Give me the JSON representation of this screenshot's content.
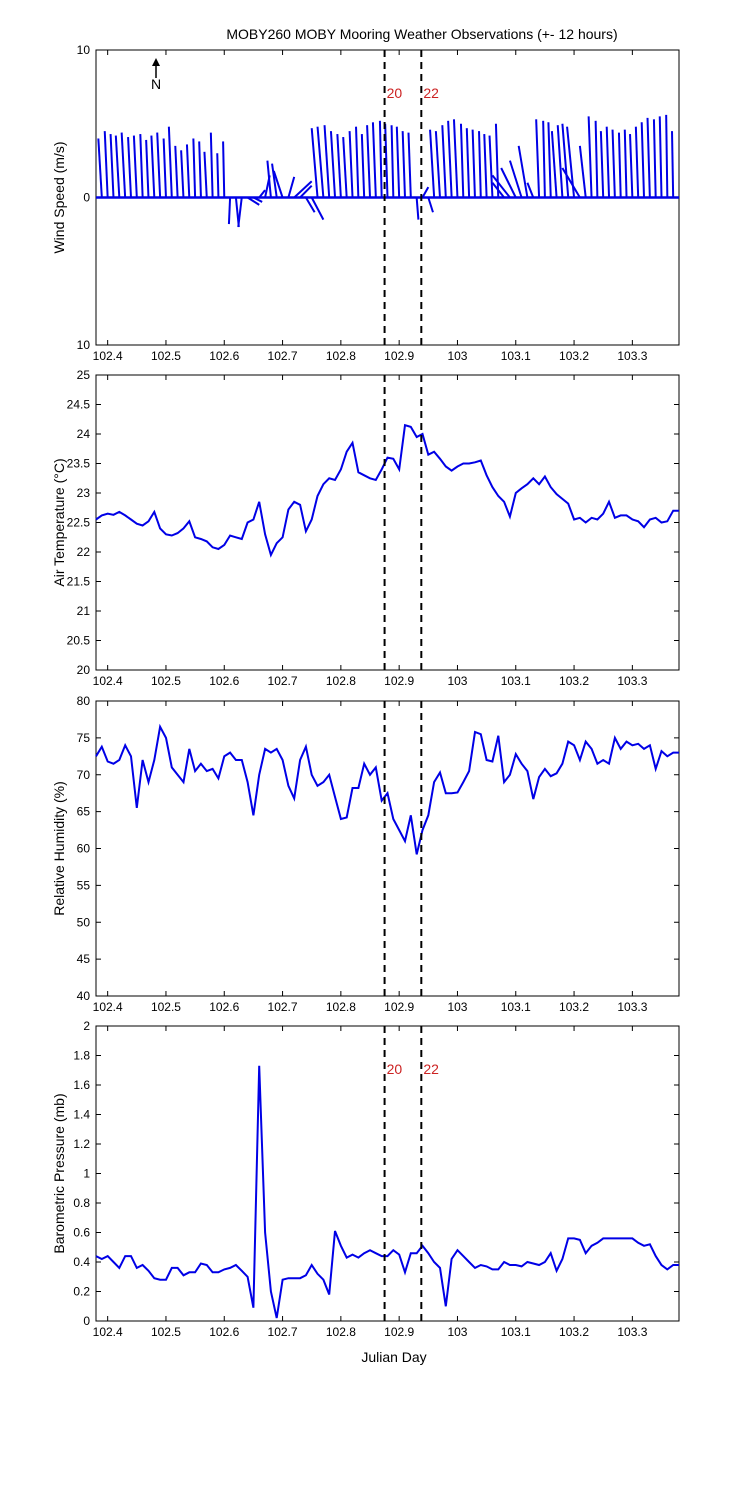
{
  "title": "MOBY260 MOBY Mooring Weather Observations (+- 12 hours)",
  "xlabel": "Julian Day",
  "north_label": "N",
  "colors": {
    "series": "#0000e6",
    "marker_text": "#cc2222",
    "axes": "#000000"
  },
  "x_ticks": [
    "102.4",
    "102.5",
    "102.6",
    "102.7",
    "102.8",
    "102.9",
    "103",
    "103.1",
    "103.2",
    "103.3"
  ],
  "marker_labels": [
    "20",
    "22"
  ],
  "chart_data": [
    {
      "type": "line",
      "ylabel": "Wind Speed (m/s)",
      "xlim": [
        102.38,
        103.38
      ],
      "ylim": [
        -10,
        10
      ],
      "y_ticks": [
        "10",
        "0",
        "10"
      ],
      "markers": {
        "x": [
          102.875,
          102.938
        ],
        "labels_shown": true
      },
      "note": "Wind vector stick plot",
      "x": [
        102.39,
        102.4,
        102.41,
        102.42,
        102.43,
        102.44,
        102.45,
        102.46,
        102.47,
        102.48,
        102.49,
        102.5,
        102.51,
        102.52,
        102.53,
        102.54,
        102.55,
        102.56,
        102.57,
        102.58,
        102.59,
        102.6,
        102.61,
        102.62,
        102.63,
        102.64,
        102.65,
        102.66,
        102.67,
        102.68,
        102.69,
        102.7,
        102.71,
        102.72,
        102.73,
        102.74,
        102.75,
        102.76,
        102.77,
        102.78,
        102.79,
        102.8,
        102.81,
        102.82,
        102.83,
        102.84,
        102.85,
        102.86,
        102.87,
        102.88,
        102.89,
        102.9,
        102.91,
        102.92,
        102.93,
        102.94,
        102.95,
        102.96,
        102.97,
        102.98,
        102.99,
        103.0,
        103.01,
        103.02,
        103.03,
        103.04,
        103.05,
        103.06,
        103.07,
        103.08,
        103.09,
        103.1,
        103.11,
        103.12,
        103.13,
        103.14,
        103.15,
        103.16,
        103.17,
        103.18,
        103.19,
        103.2,
        103.21,
        103.22,
        103.23,
        103.24,
        103.25,
        103.26,
        103.27,
        103.28,
        103.29,
        103.3,
        103.31,
        103.32,
        103.33,
        103.34,
        103.35,
        103.36,
        103.37
      ],
      "u": [
        -0.006,
        -0.005,
        -0.005,
        -0.006,
        -0.006,
        -0.005,
        -0.005,
        -0.004,
        -0.004,
        -0.005,
        -0.005,
        -0.004,
        -0.005,
        -0.004,
        -0.004,
        -0.004,
        -0.003,
        -0.003,
        -0.004,
        -0.003,
        -0.002,
        -0.002,
        -0.002,
        0.005,
        -0.006,
        0.02,
        0.015,
        0.01,
        0.008,
        -0.006,
        -0.008,
        -0.015,
        0.01,
        0.03,
        0.02,
        0.015,
        0.02,
        -0.01,
        -0.01,
        -0.008,
        -0.007,
        -0.006,
        -0.006,
        -0.005,
        -0.004,
        -0.004,
        -0.005,
        -0.005,
        -0.003,
        -0.004,
        -0.003,
        -0.004,
        -0.004,
        -0.004,
        0.003,
        0.01,
        0.008,
        -0.007,
        -0.007,
        -0.006,
        -0.006,
        -0.006,
        -0.004,
        -0.004,
        -0.004,
        -0.003,
        -0.004,
        -0.005,
        -0.004,
        -0.02,
        -0.03,
        -0.025,
        -0.02,
        -0.015,
        -0.01,
        -0.005,
        -0.003,
        -0.004,
        -0.008,
        -0.008,
        -0.01,
        -0.012,
        -0.03,
        -0.01,
        -0.005,
        -0.003,
        -0.004,
        -0.004,
        -0.004,
        -0.003,
        -0.003,
        -0.004,
        -0.004,
        -0.004,
        -0.004,
        -0.003,
        -0.003,
        -0.002,
        -0.002
      ],
      "v": [
        4.0,
        4.5,
        4.3,
        4.2,
        4.4,
        4.1,
        4.2,
        4.3,
        3.9,
        4.2,
        4.4,
        4.0,
        4.8,
        3.5,
        3.2,
        3.6,
        4.0,
        3.8,
        3.1,
        4.4,
        3.0,
        3.8,
        -1.8,
        -2.0,
        -2.0,
        -0.5,
        -0.3,
        0.5,
        1.5,
        2.5,
        2.3,
        1.8,
        1.4,
        1.1,
        0.8,
        -1.0,
        -1.5,
        4.7,
        4.8,
        4.9,
        4.5,
        4.3,
        4.1,
        4.5,
        4.8,
        4.3,
        4.9,
        5.1,
        5.2,
        5.0,
        4.9,
        4.8,
        4.5,
        4.4,
        -1.5,
        0.7,
        -1.0,
        4.6,
        4.5,
        4.9,
        5.2,
        5.3,
        5.0,
        4.7,
        4.6,
        4.5,
        4.3,
        4.2,
        5.0,
        1.0,
        1.5,
        2.0,
        2.5,
        3.5,
        1.0,
        5.3,
        5.2,
        5.1,
        4.5,
        4.9,
        5.0,
        4.8,
        2.0,
        3.5,
        5.5,
        5.2,
        4.5,
        4.8,
        4.6,
        4.4,
        4.6,
        4.3,
        4.8,
        5.1,
        5.4,
        5.3,
        5.5,
        5.6,
        4.5
      ]
    },
    {
      "type": "line",
      "ylabel": "Air Temperature (°C)",
      "xlim": [
        102.38,
        103.38
      ],
      "ylim": [
        20,
        25
      ],
      "y_ticks": [
        "20",
        "20.5",
        "21",
        "21.5",
        "22",
        "22.5",
        "23",
        "23.5",
        "24",
        "24.5",
        "25"
      ],
      "markers": {
        "x": [
          102.875,
          102.938
        ],
        "labels_shown": false
      },
      "x": [
        102.38,
        102.39,
        102.4,
        102.41,
        102.42,
        102.43,
        102.44,
        102.45,
        102.46,
        102.47,
        102.48,
        102.49,
        102.5,
        102.51,
        102.52,
        102.53,
        102.54,
        102.55,
        102.56,
        102.57,
        102.58,
        102.59,
        102.6,
        102.61,
        102.62,
        102.63,
        102.64,
        102.65,
        102.66,
        102.67,
        102.68,
        102.69,
        102.7,
        102.71,
        102.72,
        102.73,
        102.74,
        102.75,
        102.76,
        102.77,
        102.78,
        102.79,
        102.8,
        102.81,
        102.82,
        102.83,
        102.84,
        102.85,
        102.86,
        102.87,
        102.88,
        102.89,
        102.9,
        102.91,
        102.92,
        102.93,
        102.94,
        102.95,
        102.96,
        102.97,
        102.98,
        102.99,
        103.0,
        103.01,
        103.02,
        103.03,
        103.04,
        103.05,
        103.06,
        103.07,
        103.08,
        103.09,
        103.1,
        103.11,
        103.12,
        103.13,
        103.14,
        103.15,
        103.16,
        103.17,
        103.18,
        103.19,
        103.2,
        103.21,
        103.22,
        103.23,
        103.24,
        103.25,
        103.26,
        103.27,
        103.28,
        103.29,
        103.3,
        103.31,
        103.32,
        103.33,
        103.34,
        103.35,
        103.36,
        103.37,
        103.38
      ],
      "values": [
        22.55,
        22.62,
        22.65,
        22.63,
        22.68,
        22.62,
        22.55,
        22.48,
        22.45,
        22.52,
        22.68,
        22.4,
        22.3,
        22.28,
        22.32,
        22.4,
        22.52,
        22.25,
        22.22,
        22.18,
        22.08,
        22.05,
        22.12,
        22.28,
        22.25,
        22.22,
        22.5,
        22.55,
        22.85,
        22.3,
        21.95,
        22.15,
        22.25,
        22.72,
        22.85,
        22.8,
        22.35,
        22.55,
        22.95,
        23.15,
        23.25,
        23.22,
        23.4,
        23.7,
        23.85,
        23.35,
        23.3,
        23.25,
        23.22,
        23.4,
        23.6,
        23.58,
        23.4,
        24.15,
        24.12,
        23.95,
        24.0,
        23.65,
        23.7,
        23.58,
        23.45,
        23.38,
        23.45,
        23.5,
        23.5,
        23.52,
        23.55,
        23.3,
        23.1,
        22.95,
        22.85,
        22.6,
        23.0,
        23.08,
        23.15,
        23.25,
        23.15,
        23.28,
        23.1,
        22.98,
        22.9,
        22.82,
        22.55,
        22.58,
        22.5,
        22.58,
        22.55,
        22.65,
        22.85,
        22.58,
        22.62,
        22.62,
        22.55,
        22.52,
        22.42,
        22.55,
        22.58,
        22.5,
        22.52,
        22.7,
        22.7
      ]
    },
    {
      "type": "line",
      "ylabel": "Relative Humidity (%)",
      "xlim": [
        102.38,
        103.38
      ],
      "ylim": [
        40,
        80
      ],
      "y_ticks": [
        "40",
        "45",
        "50",
        "55",
        "60",
        "65",
        "70",
        "75",
        "80"
      ],
      "markers": {
        "x": [
          102.875,
          102.938
        ],
        "labels_shown": false
      },
      "x": [
        102.38,
        102.39,
        102.4,
        102.41,
        102.42,
        102.43,
        102.44,
        102.45,
        102.46,
        102.47,
        102.48,
        102.49,
        102.5,
        102.51,
        102.52,
        102.53,
        102.54,
        102.55,
        102.56,
        102.57,
        102.58,
        102.59,
        102.6,
        102.61,
        102.62,
        102.63,
        102.64,
        102.65,
        102.66,
        102.67,
        102.68,
        102.69,
        102.7,
        102.71,
        102.72,
        102.73,
        102.74,
        102.75,
        102.76,
        102.77,
        102.78,
        102.79,
        102.8,
        102.81,
        102.82,
        102.83,
        102.84,
        102.85,
        102.86,
        102.87,
        102.88,
        102.89,
        102.9,
        102.91,
        102.92,
        102.93,
        102.94,
        102.95,
        102.96,
        102.97,
        102.98,
        102.99,
        103.0,
        103.01,
        103.02,
        103.03,
        103.04,
        103.05,
        103.06,
        103.07,
        103.08,
        103.09,
        103.1,
        103.11,
        103.12,
        103.13,
        103.14,
        103.15,
        103.16,
        103.17,
        103.18,
        103.19,
        103.2,
        103.21,
        103.22,
        103.23,
        103.24,
        103.25,
        103.26,
        103.27,
        103.28,
        103.29,
        103.3,
        103.31,
        103.32,
        103.33,
        103.34,
        103.35,
        103.36,
        103.37,
        103.38
      ],
      "values": [
        72.5,
        73.8,
        71.8,
        71.5,
        72.0,
        74.0,
        72.5,
        65.5,
        72.0,
        69.0,
        72.0,
        76.5,
        75.0,
        71.0,
        70.0,
        69.0,
        73.5,
        70.5,
        71.5,
        70.5,
        70.8,
        69.5,
        72.5,
        73.0,
        72.0,
        72.0,
        69.0,
        64.5,
        70.0,
        73.5,
        73.0,
        73.5,
        72.0,
        68.5,
        66.8,
        72.0,
        73.8,
        70.0,
        68.5,
        69.0,
        70.0,
        67.0,
        64.0,
        64.2,
        68.2,
        68.2,
        71.5,
        70.0,
        71.0,
        66.5,
        67.5,
        64.0,
        62.5,
        61.0,
        64.5,
        59.2,
        62.5,
        64.5,
        69.0,
        70.3,
        67.5,
        67.5,
        67.6,
        69.0,
        70.5,
        75.8,
        75.5,
        72.0,
        71.8,
        75.3,
        69.0,
        70.0,
        72.8,
        71.5,
        70.5,
        66.7,
        69.7,
        70.8,
        69.8,
        70.2,
        71.5,
        74.5,
        74.0,
        72.0,
        74.5,
        73.5,
        71.5,
        72.0,
        71.5,
        75.0,
        73.5,
        74.5,
        74.0,
        74.2,
        73.5,
        74.0,
        70.8,
        73.2,
        72.5,
        73.0,
        73.0
      ]
    },
    {
      "type": "line",
      "ylabel": "Barometric Pressure (mb)",
      "xlabel": "Julian Day",
      "xlim": [
        102.38,
        103.38
      ],
      "ylim": [
        0,
        2
      ],
      "y_ticks": [
        "0",
        "0.2",
        "0.4",
        "0.6",
        "0.8",
        "1",
        "1.2",
        "1.4",
        "1.6",
        "1.8",
        "2"
      ],
      "markers": {
        "x": [
          102.875,
          102.938
        ],
        "labels_shown": true
      },
      "x": [
        102.38,
        102.39,
        102.4,
        102.41,
        102.42,
        102.43,
        102.44,
        102.45,
        102.46,
        102.47,
        102.48,
        102.49,
        102.5,
        102.51,
        102.52,
        102.53,
        102.54,
        102.55,
        102.56,
        102.57,
        102.58,
        102.59,
        102.6,
        102.61,
        102.62,
        102.63,
        102.64,
        102.65,
        102.66,
        102.67,
        102.68,
        102.69,
        102.7,
        102.71,
        102.72,
        102.73,
        102.74,
        102.75,
        102.76,
        102.77,
        102.78,
        102.79,
        102.8,
        102.81,
        102.82,
        102.83,
        102.84,
        102.85,
        102.86,
        102.87,
        102.88,
        102.89,
        102.9,
        102.91,
        102.92,
        102.93,
        102.94,
        102.95,
        102.96,
        102.97,
        102.98,
        102.99,
        103.0,
        103.01,
        103.02,
        103.03,
        103.04,
        103.05,
        103.06,
        103.07,
        103.08,
        103.09,
        103.1,
        103.11,
        103.12,
        103.13,
        103.14,
        103.15,
        103.16,
        103.17,
        103.18,
        103.19,
        103.2,
        103.21,
        103.22,
        103.23,
        103.24,
        103.25,
        103.26,
        103.27,
        103.28,
        103.29,
        103.3,
        103.31,
        103.32,
        103.33,
        103.34,
        103.35,
        103.36,
        103.37,
        103.38
      ],
      "values": [
        0.44,
        0.42,
        0.44,
        0.4,
        0.36,
        0.44,
        0.44,
        0.36,
        0.38,
        0.34,
        0.29,
        0.28,
        0.28,
        0.36,
        0.36,
        0.31,
        0.33,
        0.33,
        0.39,
        0.38,
        0.33,
        0.33,
        0.35,
        0.36,
        0.38,
        0.34,
        0.3,
        0.09,
        1.73,
        0.6,
        0.2,
        0.02,
        0.28,
        0.29,
        0.29,
        0.29,
        0.31,
        0.38,
        0.32,
        0.28,
        0.18,
        0.61,
        0.51,
        0.43,
        0.45,
        0.43,
        0.46,
        0.48,
        0.46,
        0.44,
        0.44,
        0.48,
        0.45,
        0.33,
        0.46,
        0.46,
        0.51,
        0.46,
        0.4,
        0.36,
        0.1,
        0.42,
        0.48,
        0.44,
        0.4,
        0.36,
        0.38,
        0.37,
        0.35,
        0.35,
        0.4,
        0.38,
        0.38,
        0.37,
        0.4,
        0.39,
        0.38,
        0.4,
        0.46,
        0.34,
        0.42,
        0.56,
        0.56,
        0.55,
        0.46,
        0.51,
        0.53,
        0.56,
        0.56,
        0.56,
        0.56,
        0.56,
        0.56,
        0.53,
        0.51,
        0.52,
        0.44,
        0.38,
        0.35,
        0.38,
        0.38
      ]
    }
  ]
}
